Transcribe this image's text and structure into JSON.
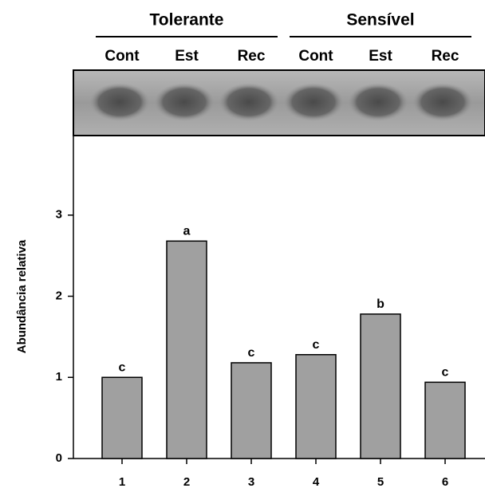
{
  "chart_data": {
    "type": "bar",
    "y_label": "Abundância relativa",
    "groups": [
      {
        "name": "Tolerante",
        "lanes": [
          "Cont",
          "Est",
          "Rec"
        ]
      },
      {
        "name": "Sensível",
        "lanes": [
          "Cont",
          "Est",
          "Rec"
        ]
      }
    ],
    "categories": [
      "1",
      "2",
      "3",
      "4",
      "5",
      "6"
    ],
    "values": [
      1.0,
      2.68,
      1.18,
      1.28,
      1.78,
      0.94
    ],
    "significance": [
      "c",
      "a",
      "c",
      "c",
      "b",
      "c"
    ],
    "color": "#a0a0a0",
    "ylim": [
      0,
      4
    ],
    "yticks": [
      0,
      1,
      2,
      3
    ]
  }
}
